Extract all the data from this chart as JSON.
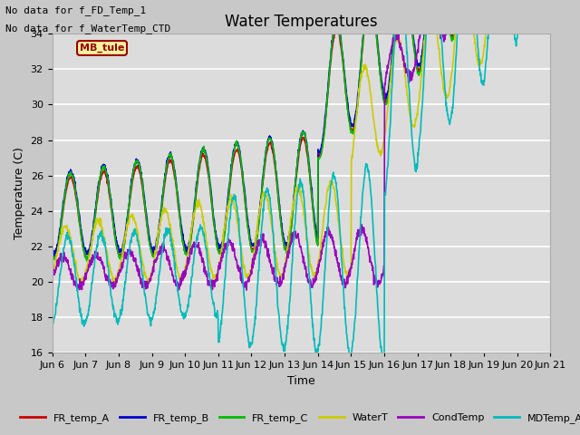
{
  "title": "Water Temperatures",
  "xlabel": "Time",
  "ylabel": "Temperature (C)",
  "ylim": [
    16,
    34
  ],
  "xlim": [
    0,
    15
  ],
  "xtick_labels": [
    "Jun 6",
    "Jun 7",
    "Jun 8",
    "Jun 9",
    "Jun 10",
    "Jun 11",
    "Jun 12",
    "Jun 13",
    "Jun 14",
    "Jun 15",
    "Jun 16",
    "Jun 17",
    "Jun 18",
    "Jun 19",
    "Jun 20",
    "Jun 21"
  ],
  "background_color": "#c8c8c8",
  "plot_bg_color": "#dcdcdc",
  "annotations": [
    "No data for f_FD_Temp_1",
    "No data for f_WaterTemp_CTD"
  ],
  "mb_tule_label": "MB_tule",
  "legend_entries": [
    "FR_temp_A",
    "FR_temp_B",
    "FR_temp_C",
    "WaterT",
    "CondTemp",
    "MDTemp_A"
  ],
  "legend_colors": [
    "#cc0000",
    "#0000cc",
    "#00bb00",
    "#cccc00",
    "#9900bb",
    "#00bbbb"
  ],
  "line_width": 1.2,
  "title_fontsize": 12,
  "tick_fontsize": 8,
  "label_fontsize": 9
}
